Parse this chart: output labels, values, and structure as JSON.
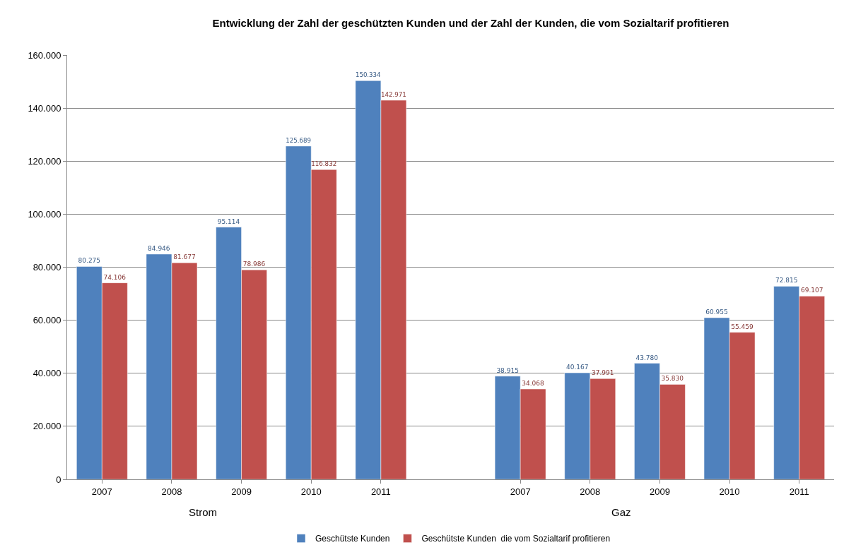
{
  "chart_data": {
    "type": "bar",
    "title": "Entwicklung der Zahl der geschützten Kunden und der Zahl der Kunden, die vom Sozialtarif profitieren",
    "categories": [
      "2007",
      "2008",
      "2009",
      "2010",
      "2011",
      null,
      "2007",
      "2008",
      "2009",
      "2010",
      "2011"
    ],
    "series": [
      {
        "name": "Geschütste Kunden",
        "color": "#4f81bd",
        "values": [
          80275,
          84946,
          95114,
          125689,
          150334,
          null,
          38915,
          40167,
          43780,
          60955,
          72815
        ],
        "value_labels": [
          "80.275",
          "84.946",
          "95.114",
          "125.689",
          "150.334",
          null,
          "38.915",
          "40.167",
          "43.780",
          "60.955",
          "72.815"
        ]
      },
      {
        "name": "Geschütste Kunden  die vom Sozialtarif profitieren",
        "color": "#c0504d",
        "values": [
          74106,
          81677,
          78986,
          116832,
          142971,
          null,
          34068,
          37991,
          35830,
          55459,
          69107
        ],
        "value_labels": [
          "74.106",
          "81.677",
          "78.986",
          "116.832",
          "142.971",
          null,
          "34.068",
          "37.991",
          "35.830",
          "55.459",
          "69.107"
        ]
      }
    ],
    "ylim": [
      0,
      160000
    ],
    "yticks": [
      0,
      {
        "value": 20000,
        "label": "20.000"
      },
      {
        "value": 40000,
        "label": "40.000"
      },
      {
        "value": 60000,
        "label": "60.000"
      },
      {
        "value": 80000,
        "label": "80.000"
      },
      {
        "value": 100000,
        "label": "100.000"
      },
      {
        "value": 120000,
        "label": "120.000"
      },
      {
        "value": 140000,
        "label": "140.000"
      },
      {
        "value": 160000,
        "label": "160.000"
      }
    ],
    "annotations": [
      "Strom",
      "Gaz"
    ],
    "grid": "y",
    "legend": "bottom"
  }
}
